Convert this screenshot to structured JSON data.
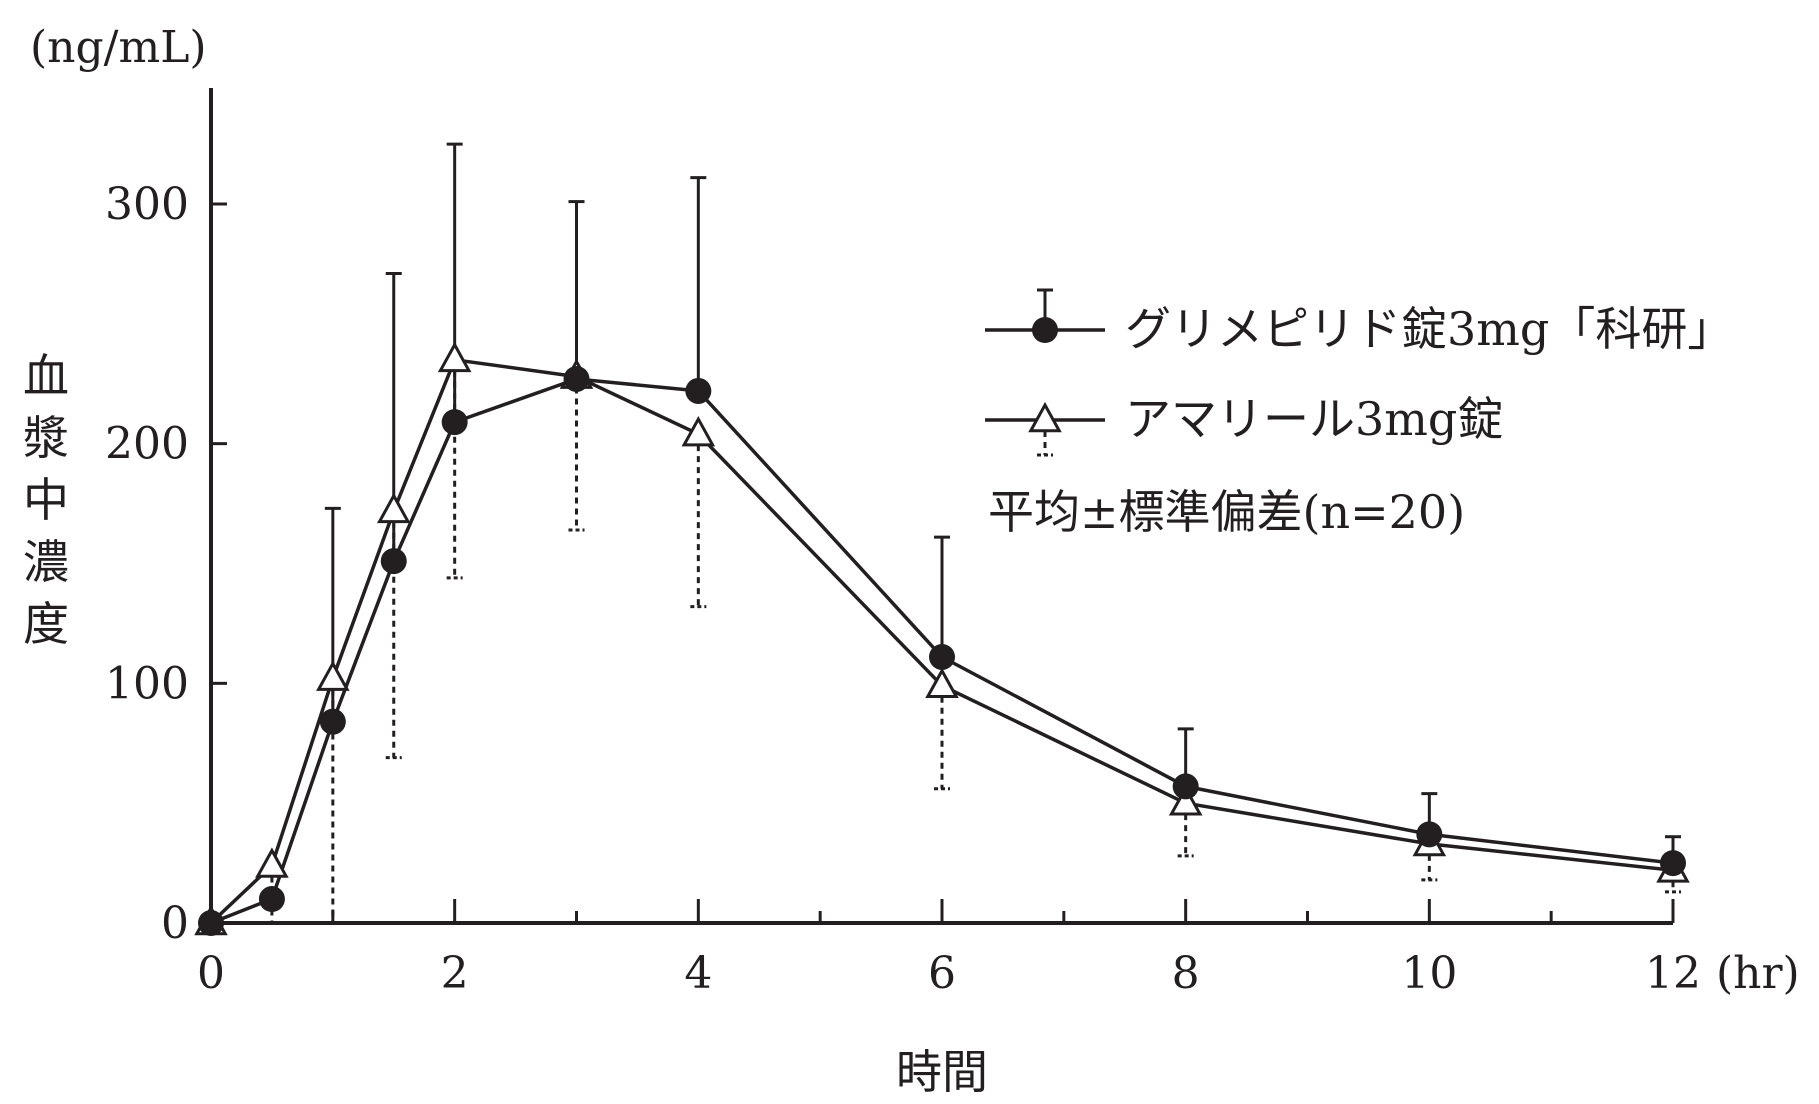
{
  "chart_data": {
    "type": "line",
    "title": "",
    "xlabel": "時間",
    "x_unit": "(hr)",
    "ylabel": "血漿中濃度",
    "y_unit": "(ng/mL)",
    "xlim": [
      0,
      12
    ],
    "ylim": [
      0,
      340
    ],
    "x_ticks": [
      0,
      2,
      4,
      6,
      8,
      10,
      12
    ],
    "x_tick_labels": [
      "0",
      "2",
      "4",
      "6",
      "8",
      "10",
      "12"
    ],
    "x_minor_ticks": [
      1,
      3,
      5,
      7,
      9,
      11
    ],
    "y_ticks": [
      0,
      100,
      200,
      300
    ],
    "y_tick_labels": [
      "0",
      "100",
      "200",
      "300"
    ],
    "grid": false,
    "legend_position": "top-right",
    "note": "平均±標準偏差(n=20)",
    "series": [
      {
        "name": "グリメピリド錠3mg「科研」",
        "marker": "filled-circle",
        "error": "solid, upward",
        "x": [
          0,
          0.5,
          1,
          1.5,
          2,
          3,
          4,
          6,
          8,
          10,
          12
        ],
        "y": [
          0,
          10,
          84,
          151,
          209,
          227,
          222,
          111,
          57,
          37,
          25
        ],
        "err": [
          0,
          0,
          89,
          120,
          116,
          74,
          89,
          50,
          24,
          17,
          11
        ]
      },
      {
        "name": "アマリール3mg錠",
        "marker": "open-triangle",
        "error": "dashed, downward",
        "x": [
          0,
          0.5,
          1,
          1.5,
          2,
          3,
          4,
          6,
          8,
          10,
          12
        ],
        "y": [
          0,
          24,
          102,
          172,
          235,
          228,
          204,
          99,
          50,
          33,
          22
        ],
        "err": [
          0,
          24,
          102,
          103,
          91,
          64,
          72,
          43,
          22,
          15,
          9
        ]
      }
    ]
  }
}
